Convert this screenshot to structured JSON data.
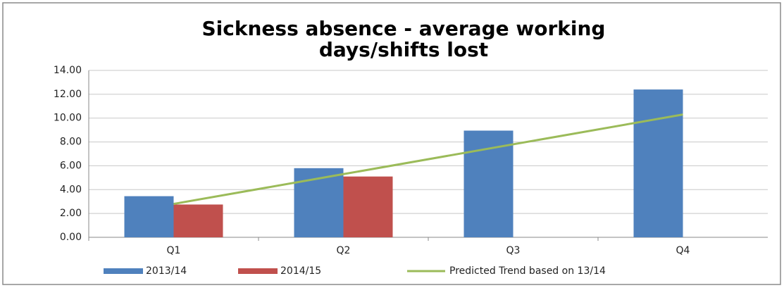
{
  "chart_data": {
    "type": "bar",
    "title": [
      "Sickness absence - average working",
      "days/shifts lost"
    ],
    "categories": [
      "Q1",
      "Q2",
      "Q3",
      "Q4"
    ],
    "series": [
      {
        "name": "2013/14",
        "color": "#4f81bd",
        "type": "bar",
        "values": [
          3.45,
          5.8,
          8.95,
          12.4
        ]
      },
      {
        "name": "2014/15",
        "color": "#c0504d",
        "type": "bar",
        "values": [
          2.75,
          5.1,
          null,
          null
        ]
      },
      {
        "name": "Predicted Trend based on 13/14",
        "color": "#9bbb59",
        "type": "line",
        "values": [
          2.8,
          5.3,
          7.8,
          10.3
        ]
      }
    ],
    "ylim": [
      0,
      14
    ],
    "yticks": [
      {
        "value": 0,
        "label": "0.00"
      },
      {
        "value": 2,
        "label": "2.00"
      },
      {
        "value": 4,
        "label": "4.00"
      },
      {
        "value": 6,
        "label": "6.00"
      },
      {
        "value": 8,
        "label": "8.00"
      },
      {
        "value": 10,
        "label": "10.00"
      },
      {
        "value": 12,
        "label": "12.00"
      },
      {
        "value": 14,
        "label": "14.00"
      }
    ],
    "grid": true,
    "legend": "bottom"
  }
}
